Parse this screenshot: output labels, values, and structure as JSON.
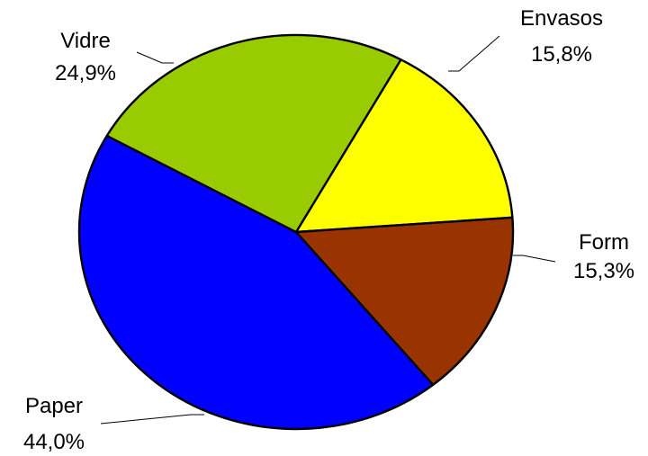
{
  "chart_data": {
    "type": "pie",
    "slices": [
      {
        "category": "Envasos",
        "value_label": "15,8%",
        "value": 15.8,
        "color": "#ffff00"
      },
      {
        "category": "Form",
        "value_label": "15,3%",
        "value": 15.3,
        "color": "#993300"
      },
      {
        "category": "Paper",
        "value_label": "44,0%",
        "value": 44.0,
        "color": "#0000ff"
      },
      {
        "category": "Vidre",
        "value_label": "24,9%",
        "value": 24.9,
        "color": "#99cc00"
      }
    ]
  }
}
